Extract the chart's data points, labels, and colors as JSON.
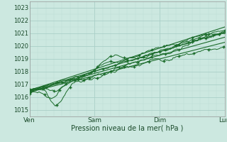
{
  "xlabel": "Pression niveau de la mer( hPa )",
  "bg_color": "#cce8e0",
  "grid_major_color": "#aacfc8",
  "grid_minor_color": "#bbddd6",
  "line_color": "#1a6b2a",
  "ylim": [
    1014.5,
    1023.5
  ],
  "xlim": [
    0,
    72
  ],
  "xtick_positions": [
    0,
    24,
    48,
    72
  ],
  "xtick_labels": [
    "Ven",
    "Sam",
    "Dim",
    "Lun"
  ],
  "ytick_positions": [
    1015,
    1016,
    1017,
    1018,
    1019,
    1020,
    1021,
    1022,
    1023
  ],
  "trend_lines": [
    [
      0,
      1016.55,
      72,
      1021.5
    ],
    [
      0,
      1016.5,
      72,
      1021.1
    ],
    [
      0,
      1016.45,
      72,
      1020.7
    ],
    [
      0,
      1016.4,
      72,
      1020.3
    ]
  ]
}
